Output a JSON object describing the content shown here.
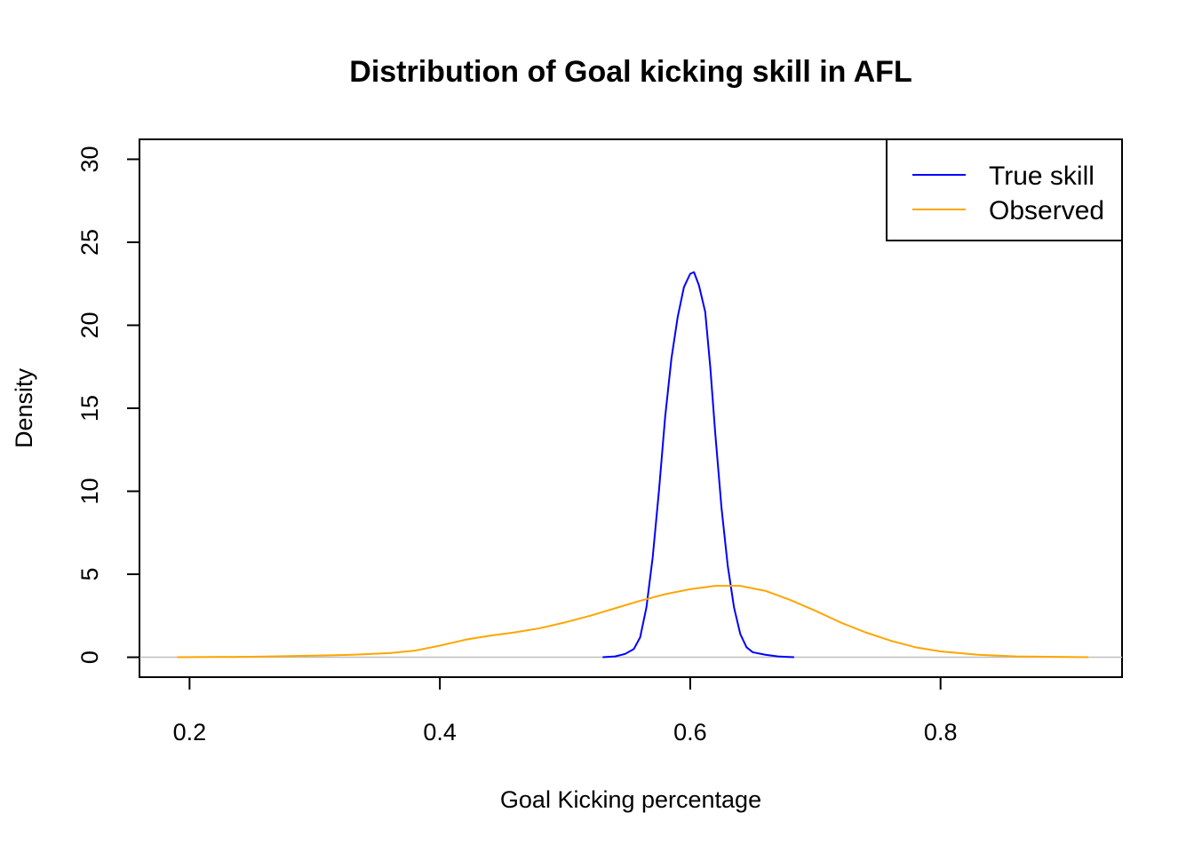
{
  "chart_data": {
    "type": "line",
    "title": "Distribution of Goal kicking skill in AFL",
    "xlabel": "Goal Kicking  percentage",
    "ylabel": "Density",
    "xlim": [
      0.16,
      0.945
    ],
    "ylim": [
      -1.2,
      31.2
    ],
    "xticks": [
      0.2,
      0.4,
      0.6,
      0.8
    ],
    "xtick_labels": [
      "0.2",
      "0.4",
      "0.6",
      "0.8"
    ],
    "yticks": [
      0,
      5,
      10,
      15,
      20,
      25,
      30
    ],
    "ytick_labels": [
      "0",
      "5",
      "10",
      "15",
      "20",
      "25",
      "30"
    ],
    "grid": false,
    "baseline": {
      "y": 0,
      "color": "#bebebe"
    },
    "legend": {
      "position": "top-right",
      "items": [
        "True skill",
        "Observed"
      ]
    },
    "series": [
      {
        "name": "True skill",
        "color": "#0000ff",
        "points": [
          [
            0.53,
            0.0
          ],
          [
            0.54,
            0.05
          ],
          [
            0.548,
            0.2
          ],
          [
            0.555,
            0.5
          ],
          [
            0.56,
            1.2
          ],
          [
            0.565,
            3.0
          ],
          [
            0.57,
            6.0
          ],
          [
            0.575,
            10.0
          ],
          [
            0.58,
            14.5
          ],
          [
            0.585,
            18.0
          ],
          [
            0.59,
            20.5
          ],
          [
            0.595,
            22.3
          ],
          [
            0.6,
            23.1
          ],
          [
            0.603,
            23.2
          ],
          [
            0.607,
            22.4
          ],
          [
            0.612,
            20.8
          ],
          [
            0.616,
            17.5
          ],
          [
            0.62,
            13.5
          ],
          [
            0.625,
            9.0
          ],
          [
            0.63,
            5.5
          ],
          [
            0.635,
            3.0
          ],
          [
            0.64,
            1.4
          ],
          [
            0.645,
            0.6
          ],
          [
            0.65,
            0.3
          ],
          [
            0.66,
            0.15
          ],
          [
            0.67,
            0.05
          ],
          [
            0.683,
            0.0
          ]
        ]
      },
      {
        "name": "Observed",
        "color": "#ffa500",
        "points": [
          [
            0.19,
            0.0
          ],
          [
            0.25,
            0.03
          ],
          [
            0.3,
            0.1
          ],
          [
            0.33,
            0.15
          ],
          [
            0.36,
            0.25
          ],
          [
            0.38,
            0.4
          ],
          [
            0.4,
            0.7
          ],
          [
            0.42,
            1.05
          ],
          [
            0.44,
            1.3
          ],
          [
            0.46,
            1.5
          ],
          [
            0.48,
            1.75
          ],
          [
            0.5,
            2.1
          ],
          [
            0.52,
            2.5
          ],
          [
            0.54,
            2.95
          ],
          [
            0.56,
            3.4
          ],
          [
            0.58,
            3.8
          ],
          [
            0.6,
            4.1
          ],
          [
            0.62,
            4.3
          ],
          [
            0.64,
            4.3
          ],
          [
            0.66,
            4.0
          ],
          [
            0.68,
            3.45
          ],
          [
            0.7,
            2.8
          ],
          [
            0.72,
            2.1
          ],
          [
            0.74,
            1.5
          ],
          [
            0.76,
            1.0
          ],
          [
            0.78,
            0.6
          ],
          [
            0.8,
            0.35
          ],
          [
            0.83,
            0.15
          ],
          [
            0.86,
            0.05
          ],
          [
            0.918,
            0.0
          ]
        ]
      }
    ]
  }
}
